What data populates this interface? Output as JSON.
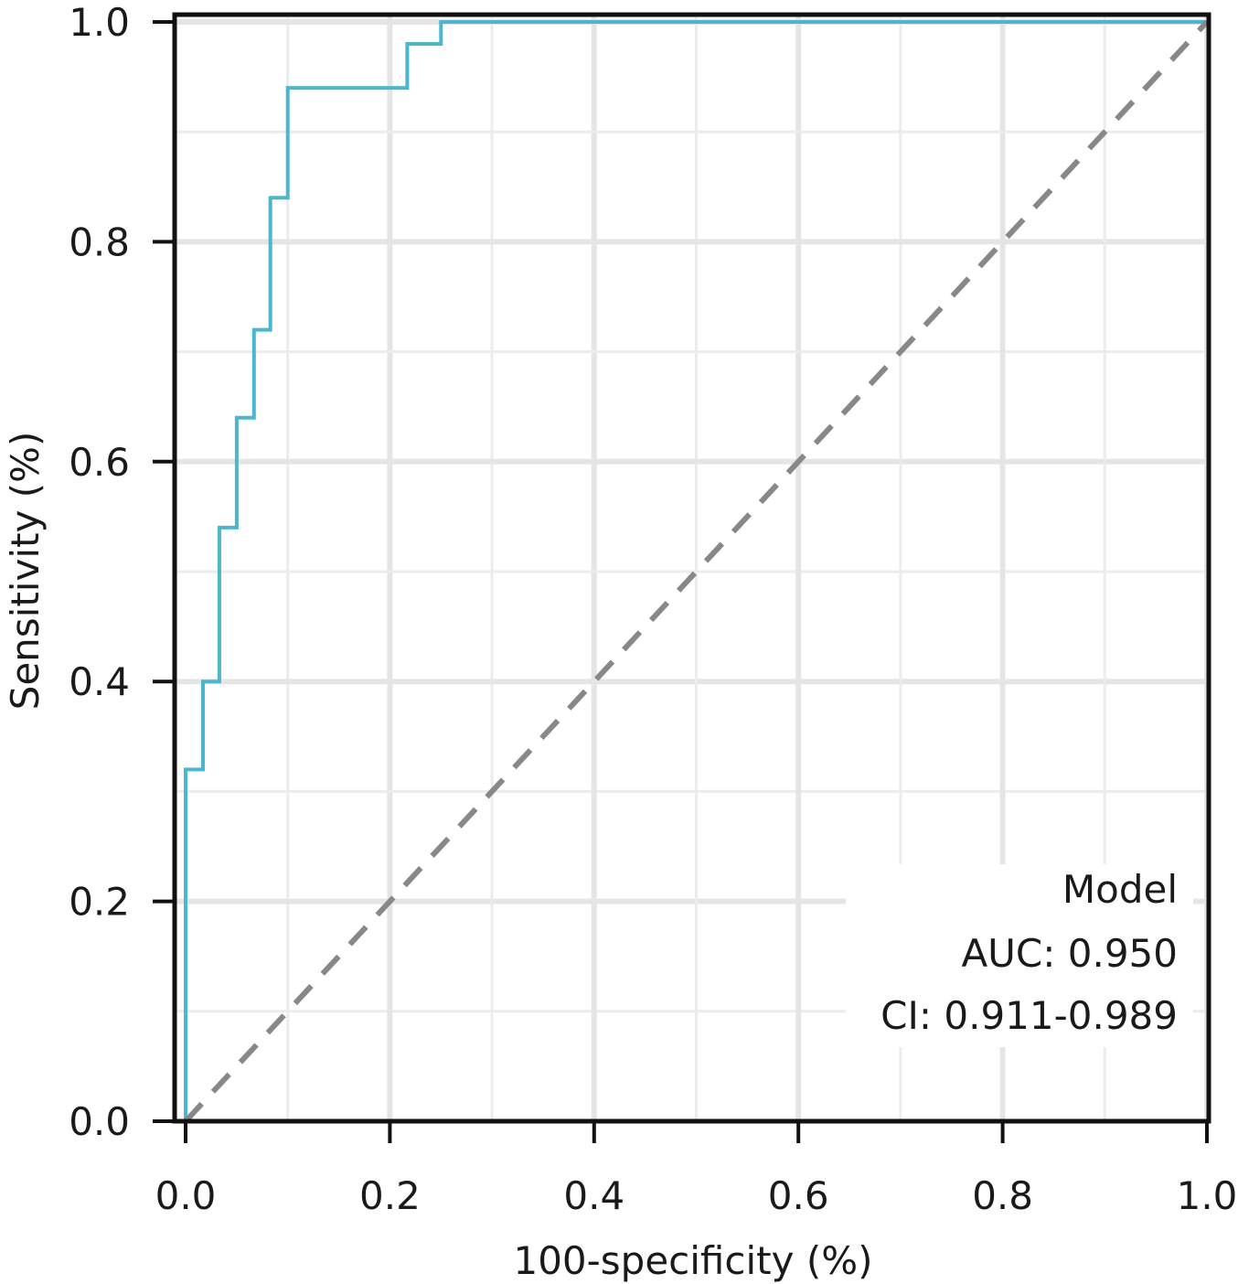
{
  "chart_data": {
    "type": "line",
    "xlabel": "100-specificity (%)",
    "ylabel": "Sensitivity (%)",
    "xlim": [
      0,
      1
    ],
    "ylim": [
      0,
      1
    ],
    "x_ticks": [
      "0.0",
      "0.2",
      "0.4",
      "0.6",
      "0.8",
      "1.0"
    ],
    "y_ticks": [
      "0.0",
      "0.2",
      "0.4",
      "0.6",
      "0.8",
      "1.0"
    ],
    "grid": true,
    "legend_position": "bottom-right",
    "legend": {
      "title": "Model",
      "auc": "AUC: 0.950",
      "ci": "CI: 0.911-0.989"
    },
    "series": [
      {
        "color": "#4db6cf",
        "points": [
          [
            0.0,
            0.0
          ],
          [
            0.0,
            0.32
          ],
          [
            0.017,
            0.32
          ],
          [
            0.017,
            0.4
          ],
          [
            0.033,
            0.4
          ],
          [
            0.033,
            0.54
          ],
          [
            0.05,
            0.54
          ],
          [
            0.05,
            0.64
          ],
          [
            0.067,
            0.64
          ],
          [
            0.067,
            0.72
          ],
          [
            0.083,
            0.72
          ],
          [
            0.083,
            0.84
          ],
          [
            0.1,
            0.84
          ],
          [
            0.1,
            0.94
          ],
          [
            0.217,
            0.94
          ],
          [
            0.217,
            0.98
          ],
          [
            0.25,
            0.98
          ],
          [
            0.25,
            1.0
          ],
          [
            1.0,
            1.0
          ]
        ]
      },
      {
        "color": "#888888",
        "style": "dashed",
        "points": [
          [
            0,
            0
          ],
          [
            1,
            1
          ]
        ]
      }
    ]
  }
}
